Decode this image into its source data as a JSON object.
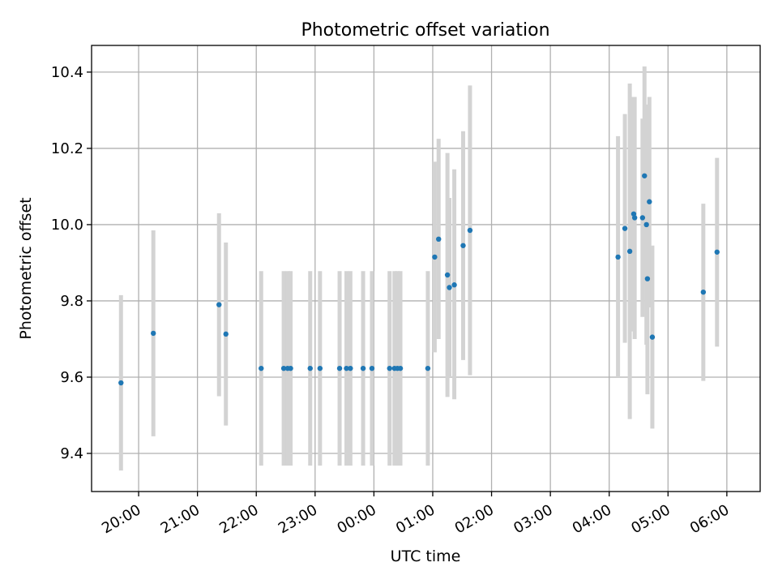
{
  "chart_data": {
    "type": "scatter",
    "title": "Photometric offset variation",
    "xlabel": "UTC time",
    "ylabel": "Photometric offset",
    "x_is_time": true,
    "x_ticks": [
      "20:00",
      "21:00",
      "22:00",
      "23:00",
      "00:00",
      "01:00",
      "02:00",
      "03:00",
      "04:00",
      "05:00",
      "06:00"
    ],
    "xlim": [
      "19:12",
      "06:34"
    ],
    "ylim": [
      9.3,
      10.47
    ],
    "y_ticks": [
      9.4,
      9.6,
      9.8,
      10.0,
      10.2,
      10.4
    ],
    "grid": true,
    "marker_color": "#1f77b4",
    "errorbar_color": "#d3d3d3",
    "points": [
      {
        "x": "19:42",
        "y": 9.585,
        "lo": 9.355,
        "hi": 9.815
      },
      {
        "x": "20:15",
        "y": 9.715,
        "lo": 9.445,
        "hi": 9.985
      },
      {
        "x": "21:22",
        "y": 9.79,
        "lo": 9.55,
        "hi": 10.03
      },
      {
        "x": "21:29",
        "y": 9.713,
        "lo": 9.473,
        "hi": 9.953
      },
      {
        "x": "22:05",
        "y": 9.623,
        "lo": 9.368,
        "hi": 9.878
      },
      {
        "x": "22:28",
        "y": 9.623,
        "lo": 9.368,
        "hi": 9.878
      },
      {
        "x": "22:32",
        "y": 9.623,
        "lo": 9.368,
        "hi": 9.878
      },
      {
        "x": "22:35",
        "y": 9.623,
        "lo": 9.368,
        "hi": 9.878
      },
      {
        "x": "22:55",
        "y": 9.623,
        "lo": 9.368,
        "hi": 9.878
      },
      {
        "x": "23:05",
        "y": 9.623,
        "lo": 9.368,
        "hi": 9.878
      },
      {
        "x": "23:25",
        "y": 9.623,
        "lo": 9.368,
        "hi": 9.878
      },
      {
        "x": "23:32",
        "y": 9.623,
        "lo": 9.368,
        "hi": 9.878
      },
      {
        "x": "23:36",
        "y": 9.623,
        "lo": 9.368,
        "hi": 9.878
      },
      {
        "x": "23:49",
        "y": 9.623,
        "lo": 9.368,
        "hi": 9.878
      },
      {
        "x": "23:58",
        "y": 9.623,
        "lo": 9.368,
        "hi": 9.878
      },
      {
        "x": "00:16",
        "y": 9.623,
        "lo": 9.368,
        "hi": 9.878
      },
      {
        "x": "00:21",
        "y": 9.623,
        "lo": 9.368,
        "hi": 9.878
      },
      {
        "x": "00:24",
        "y": 9.623,
        "lo": 9.368,
        "hi": 9.878
      },
      {
        "x": "00:27",
        "y": 9.623,
        "lo": 9.368,
        "hi": 9.878
      },
      {
        "x": "00:55",
        "y": 9.623,
        "lo": 9.368,
        "hi": 9.878
      },
      {
        "x": "01:02",
        "y": 9.915,
        "lo": 9.665,
        "hi": 10.165
      },
      {
        "x": "01:06",
        "y": 9.962,
        "lo": 9.7,
        "hi": 10.225
      },
      {
        "x": "01:15",
        "y": 9.868,
        "lo": 9.548,
        "hi": 10.188
      },
      {
        "x": "01:17",
        "y": 9.835,
        "lo": 9.6,
        "hi": 10.07
      },
      {
        "x": "01:22",
        "y": 9.842,
        "lo": 9.542,
        "hi": 10.145
      },
      {
        "x": "01:31",
        "y": 9.945,
        "lo": 9.645,
        "hi": 10.245
      },
      {
        "x": "01:38",
        "y": 9.985,
        "lo": 9.605,
        "hi": 10.365
      },
      {
        "x": "04:09",
        "y": 9.915,
        "lo": 9.6,
        "hi": 10.232
      },
      {
        "x": "04:16",
        "y": 9.99,
        "lo": 9.69,
        "hi": 10.29
      },
      {
        "x": "04:21",
        "y": 9.93,
        "lo": 9.49,
        "hi": 10.37
      },
      {
        "x": "04:25",
        "y": 10.028,
        "lo": 9.72,
        "hi": 10.335
      },
      {
        "x": "04:26",
        "y": 10.018,
        "lo": 9.7,
        "hi": 10.335
      },
      {
        "x": "04:34",
        "y": 10.018,
        "lo": 9.758,
        "hi": 10.278
      },
      {
        "x": "04:36",
        "y": 10.128,
        "lo": 9.84,
        "hi": 10.415
      },
      {
        "x": "04:38",
        "y": 10.0,
        "lo": 9.685,
        "hi": 10.315
      },
      {
        "x": "04:39",
        "y": 9.858,
        "lo": 9.555,
        "hi": 10.16
      },
      {
        "x": "04:41",
        "y": 10.06,
        "lo": 9.783,
        "hi": 10.335
      },
      {
        "x": "04:44",
        "y": 9.705,
        "lo": 9.465,
        "hi": 9.945
      },
      {
        "x": "05:36",
        "y": 9.823,
        "lo": 9.59,
        "hi": 10.055
      },
      {
        "x": "05:50",
        "y": 9.928,
        "lo": 9.68,
        "hi": 10.175
      }
    ]
  }
}
